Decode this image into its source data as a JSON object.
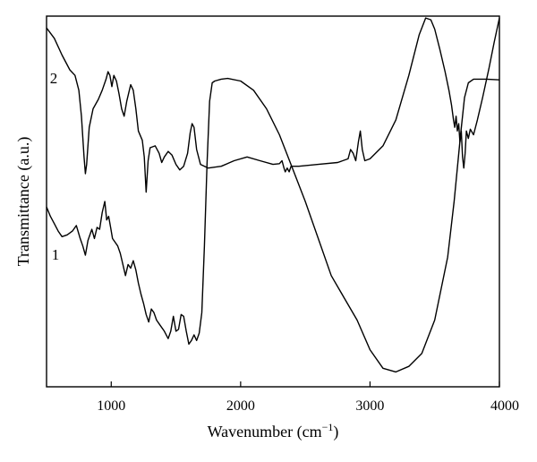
{
  "chart_data": {
    "type": "line",
    "xlabel": "Wavenumber (cm",
    "xlabel_sup": "−1",
    "xlabel_close": ")",
    "ylabel": "Transmittance (a.u.)",
    "xlim": [
      500,
      4000
    ],
    "ylim": [
      0,
      100
    ],
    "x_ticks": [
      1000,
      2000,
      3000,
      4000
    ],
    "x_tick_labels": [
      "1000",
      "2000",
      "3000",
      "4000"
    ],
    "grid": false,
    "line_color": "#000000",
    "series": [
      {
        "name": "2",
        "points": [
          [
            500,
            96.8
          ],
          [
            560,
            94.0
          ],
          [
            620,
            89.5
          ],
          [
            680,
            85.5
          ],
          [
            720,
            84.0
          ],
          [
            750,
            80.0
          ],
          [
            770,
            73.0
          ],
          [
            790,
            62.0
          ],
          [
            800,
            57.5
          ],
          [
            810,
            60.0
          ],
          [
            830,
            70.0
          ],
          [
            860,
            75.0
          ],
          [
            900,
            77.5
          ],
          [
            930,
            80.0
          ],
          [
            960,
            83.0
          ],
          [
            975,
            85.0
          ],
          [
            990,
            84.0
          ],
          [
            1005,
            81.0
          ],
          [
            1020,
            84.0
          ],
          [
            1040,
            82.5
          ],
          [
            1060,
            79.0
          ],
          [
            1080,
            75.0
          ],
          [
            1100,
            73.0
          ],
          [
            1120,
            77.0
          ],
          [
            1150,
            81.5
          ],
          [
            1170,
            80.0
          ],
          [
            1190,
            75.0
          ],
          [
            1210,
            69.0
          ],
          [
            1240,
            66.5
          ],
          [
            1255,
            62.0
          ],
          [
            1270,
            52.5
          ],
          [
            1285,
            61.0
          ],
          [
            1300,
            64.5
          ],
          [
            1340,
            65.0
          ],
          [
            1370,
            63.0
          ],
          [
            1390,
            60.5
          ],
          [
            1410,
            62.0
          ],
          [
            1440,
            63.5
          ],
          [
            1470,
            62.5
          ],
          [
            1500,
            60.0
          ],
          [
            1530,
            58.5
          ],
          [
            1560,
            59.5
          ],
          [
            1590,
            63.0
          ],
          [
            1610,
            68.5
          ],
          [
            1625,
            71.0
          ],
          [
            1640,
            70.0
          ],
          [
            1660,
            64.0
          ],
          [
            1690,
            60.0
          ],
          [
            1750,
            59.0
          ],
          [
            1850,
            59.5
          ],
          [
            1950,
            61.0
          ],
          [
            2050,
            62.0
          ],
          [
            2150,
            61.0
          ],
          [
            2250,
            60.0
          ],
          [
            2300,
            60.2
          ],
          [
            2320,
            61.0
          ],
          [
            2335,
            59.0
          ],
          [
            2345,
            58.0
          ],
          [
            2360,
            59.0
          ],
          [
            2375,
            58.0
          ],
          [
            2390,
            59.5
          ],
          [
            2450,
            59.5
          ],
          [
            2600,
            60.0
          ],
          [
            2750,
            60.5
          ],
          [
            2830,
            61.5
          ],
          [
            2850,
            64.0
          ],
          [
            2870,
            63.0
          ],
          [
            2890,
            61.0
          ],
          [
            2910,
            66.0
          ],
          [
            2925,
            69.0
          ],
          [
            2940,
            64.0
          ],
          [
            2960,
            61.0
          ],
          [
            3000,
            61.5
          ],
          [
            3100,
            65.0
          ],
          [
            3200,
            72.0
          ],
          [
            3300,
            84.0
          ],
          [
            3380,
            95.0
          ],
          [
            3430,
            99.5
          ],
          [
            3470,
            99.0
          ],
          [
            3500,
            96.5
          ],
          [
            3540,
            91.0
          ],
          [
            3580,
            85.0
          ],
          [
            3610,
            80.0
          ],
          [
            3630,
            76.0
          ],
          [
            3645,
            72.0
          ],
          [
            3655,
            70.0
          ],
          [
            3665,
            73.0
          ],
          [
            3675,
            69.0
          ],
          [
            3685,
            71.0
          ],
          [
            3695,
            66.0
          ],
          [
            3705,
            69.0
          ],
          [
            3715,
            62.0
          ],
          [
            3725,
            59.0
          ],
          [
            3735,
            63.0
          ],
          [
            3745,
            69.0
          ],
          [
            3760,
            67.0
          ],
          [
            3775,
            69.5
          ],
          [
            3800,
            68.0
          ],
          [
            3830,
            72.0
          ],
          [
            3870,
            78.0
          ],
          [
            3920,
            86.0
          ],
          [
            3960,
            93.0
          ],
          [
            4000,
            99.5
          ]
        ]
      },
      {
        "name": "1",
        "points": [
          [
            500,
            48.5
          ],
          [
            530,
            46.0
          ],
          [
            560,
            44.0
          ],
          [
            590,
            42.0
          ],
          [
            620,
            40.5
          ],
          [
            660,
            41.0
          ],
          [
            700,
            42.0
          ],
          [
            730,
            43.5
          ],
          [
            760,
            40.0
          ],
          [
            780,
            38.0
          ],
          [
            800,
            35.5
          ],
          [
            820,
            39.5
          ],
          [
            850,
            42.5
          ],
          [
            870,
            40.0
          ],
          [
            890,
            43.0
          ],
          [
            910,
            42.5
          ],
          [
            930,
            47.0
          ],
          [
            950,
            50.0
          ],
          [
            965,
            45.0
          ],
          [
            980,
            46.0
          ],
          [
            995,
            43.0
          ],
          [
            1010,
            40.0
          ],
          [
            1030,
            39.0
          ],
          [
            1050,
            38.0
          ],
          [
            1070,
            36.0
          ],
          [
            1090,
            33.0
          ],
          [
            1110,
            30.0
          ],
          [
            1130,
            33.0
          ],
          [
            1150,
            32.0
          ],
          [
            1170,
            34.0
          ],
          [
            1190,
            31.5
          ],
          [
            1210,
            28.0
          ],
          [
            1230,
            25.0
          ],
          [
            1250,
            22.5
          ],
          [
            1270,
            19.5
          ],
          [
            1290,
            17.5
          ],
          [
            1310,
            21.0
          ],
          [
            1330,
            20.0
          ],
          [
            1350,
            18.0
          ],
          [
            1380,
            16.5
          ],
          [
            1410,
            15.0
          ],
          [
            1440,
            13.0
          ],
          [
            1460,
            15.0
          ],
          [
            1480,
            19.0
          ],
          [
            1500,
            15.0
          ],
          [
            1520,
            15.5
          ],
          [
            1540,
            19.5
          ],
          [
            1560,
            19.0
          ],
          [
            1580,
            15.0
          ],
          [
            1600,
            11.5
          ],
          [
            1620,
            12.5
          ],
          [
            1640,
            14.0
          ],
          [
            1660,
            12.5
          ],
          [
            1680,
            14.5
          ],
          [
            1700,
            20.0
          ],
          [
            1720,
            38.0
          ],
          [
            1740,
            60.0
          ],
          [
            1760,
            77.0
          ],
          [
            1780,
            82.0
          ],
          [
            1800,
            82.5
          ],
          [
            1850,
            83.0
          ],
          [
            1900,
            83.2
          ],
          [
            2000,
            82.5
          ],
          [
            2100,
            80.0
          ],
          [
            2200,
            75.0
          ],
          [
            2300,
            68.0
          ],
          [
            2400,
            59.0
          ],
          [
            2500,
            50.0
          ],
          [
            2600,
            40.0
          ],
          [
            2700,
            30.0
          ],
          [
            2800,
            24.0
          ],
          [
            2900,
            18.0
          ],
          [
            3000,
            10.0
          ],
          [
            3100,
            5.0
          ],
          [
            3200,
            4.0
          ],
          [
            3300,
            5.5
          ],
          [
            3400,
            9.0
          ],
          [
            3500,
            18.0
          ],
          [
            3600,
            35.0
          ],
          [
            3650,
            50.0
          ],
          [
            3700,
            68.0
          ],
          [
            3730,
            78.0
          ],
          [
            3760,
            82.0
          ],
          [
            3800,
            83.0
          ],
          [
            3900,
            83.0
          ],
          [
            4000,
            82.8
          ]
        ]
      }
    ],
    "series_labels": [
      {
        "text": "2"
      },
      {
        "text": "1"
      }
    ]
  }
}
